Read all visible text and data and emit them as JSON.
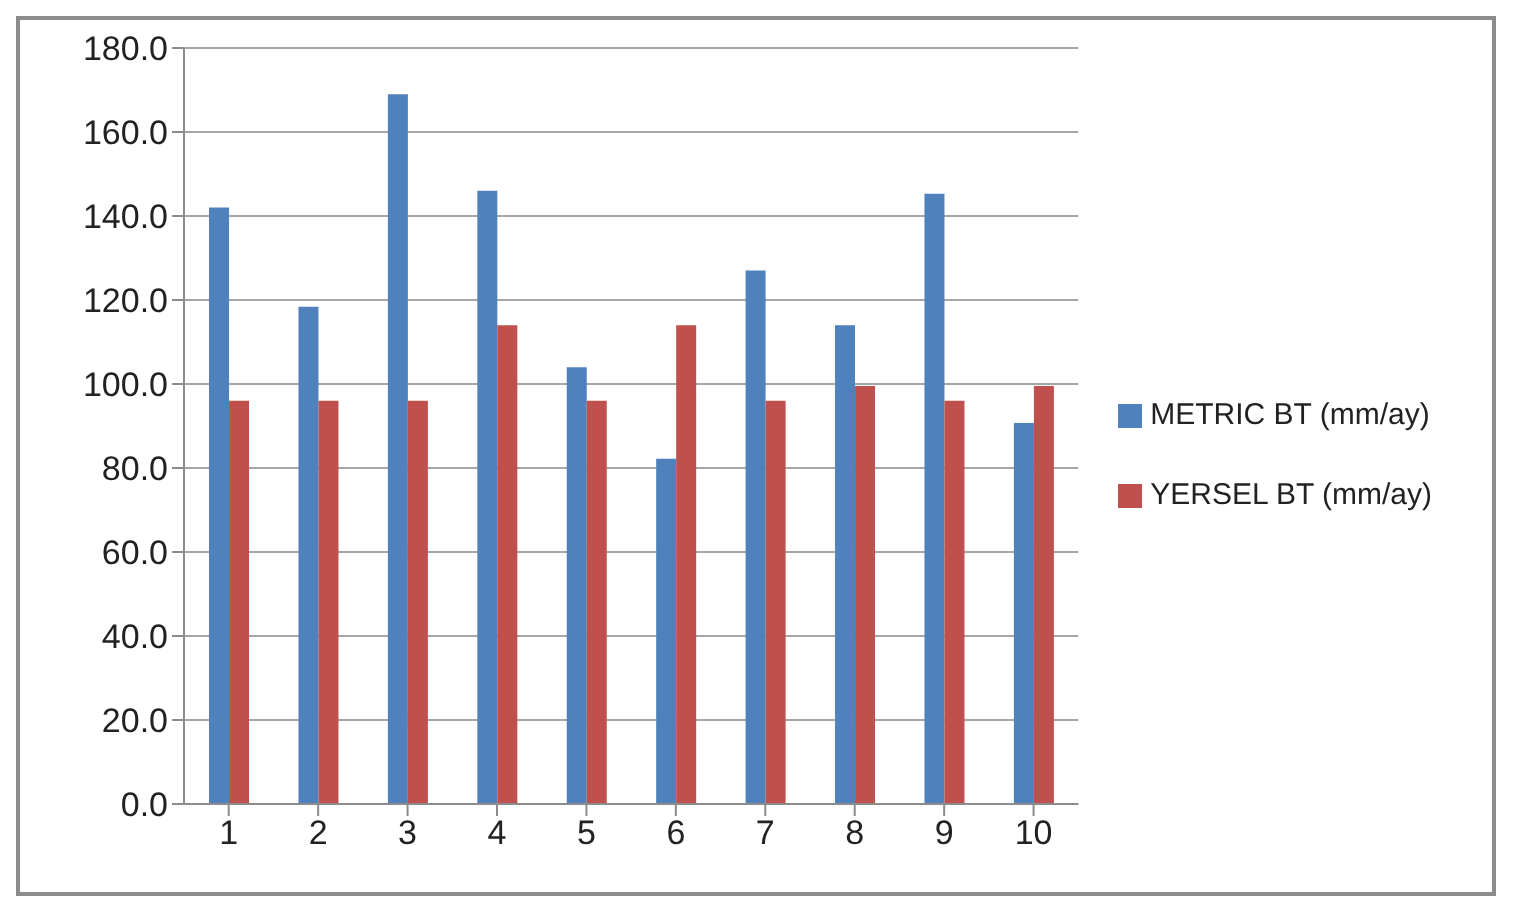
{
  "chart_data": {
    "type": "bar",
    "categories": [
      "1",
      "2",
      "3",
      "4",
      "5",
      "6",
      "7",
      "8",
      "9",
      "10"
    ],
    "series": [
      {
        "name": "METRIC  BT  (mm/ay)",
        "color": "#4f81bd",
        "values": [
          142,
          118.4,
          169,
          146,
          104,
          82.2,
          127,
          114,
          145.3,
          90.7
        ]
      },
      {
        "name": "YERSEL BT  (mm/ay)",
        "color": "#c0504d",
        "values": [
          96,
          96,
          96,
          114,
          96,
          114,
          96,
          99.5,
          96,
          99.5
        ]
      }
    ],
    "ylim": [
      0,
      180
    ],
    "yticks": [
      {
        "value": 0,
        "label": "0.0"
      },
      {
        "value": 20,
        "label": "20.0"
      },
      {
        "value": 40,
        "label": "40.0"
      },
      {
        "value": 60,
        "label": "60.0"
      },
      {
        "value": 80,
        "label": "80.0"
      },
      {
        "value": 100,
        "label": "100.0"
      },
      {
        "value": 120,
        "label": "120.0"
      },
      {
        "value": 140,
        "label": "140.0"
      },
      {
        "value": 160,
        "label": "160.0"
      },
      {
        "value": 180,
        "label": "180.0"
      }
    ],
    "grid": "y",
    "legend": "right"
  }
}
